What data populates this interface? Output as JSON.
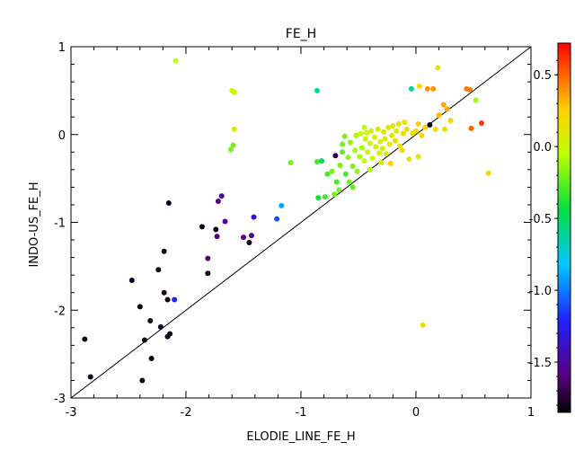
{
  "chart_data": {
    "type": "scatter",
    "title": "FE_H",
    "xlabel": "ELODIE_LINE_FE_H",
    "ylabel": "INDO-US_FE_H",
    "xlim": [
      -3,
      1
    ],
    "ylim": [
      -3,
      1
    ],
    "x_ticks": [
      "-3",
      "-2",
      "-1",
      "0",
      "1"
    ],
    "y_ticks": [
      "-3",
      "-2",
      "-1",
      "0",
      "1"
    ],
    "reference_line": "y = x",
    "grid": false,
    "legend": "none",
    "colorbar": {
      "location": "right",
      "range": [
        -1.85,
        0.72
      ],
      "ticks": [
        "0.5",
        "0.0",
        "-0.5",
        "-1.0",
        "-1.5"
      ],
      "colormap": "rainbow"
    },
    "points": [
      {
        "x": -2.88,
        "y": -2.33,
        "c": -1.8
      },
      {
        "x": -2.83,
        "y": -2.76,
        "c": -1.8
      },
      {
        "x": -2.47,
        "y": -1.66,
        "c": -1.8
      },
      {
        "x": -2.4,
        "y": -1.96,
        "c": -1.8
      },
      {
        "x": -2.36,
        "y": -2.34,
        "c": -1.8
      },
      {
        "x": -2.31,
        "y": -2.12,
        "c": -1.8
      },
      {
        "x": -2.3,
        "y": -2.55,
        "c": -1.8
      },
      {
        "x": -2.38,
        "y": -2.8,
        "c": -1.8
      },
      {
        "x": -2.24,
        "y": -1.54,
        "c": -1.8
      },
      {
        "x": -2.22,
        "y": -2.19,
        "c": -1.8
      },
      {
        "x": -2.19,
        "y": -1.33,
        "c": -1.8
      },
      {
        "x": -2.19,
        "y": -1.8,
        "c": -1.8
      },
      {
        "x": -2.16,
        "y": -1.88,
        "c": -1.8
      },
      {
        "x": -2.16,
        "y": -2.3,
        "c": -1.8
      },
      {
        "x": -2.14,
        "y": -2.27,
        "c": -1.8
      },
      {
        "x": -2.15,
        "y": -0.78,
        "c": -1.8
      },
      {
        "x": -2.1,
        "y": -1.88,
        "c": -1.2
      },
      {
        "x": -1.86,
        "y": -1.05,
        "c": -1.8
      },
      {
        "x": -1.81,
        "y": -1.58,
        "c": -1.8
      },
      {
        "x": -1.81,
        "y": -1.41,
        "c": -1.6
      },
      {
        "x": -1.74,
        "y": -1.08,
        "c": -1.8
      },
      {
        "x": -1.73,
        "y": -1.16,
        "c": -1.6
      },
      {
        "x": -1.72,
        "y": -0.76,
        "c": -1.6
      },
      {
        "x": -1.69,
        "y": -0.7,
        "c": -1.5
      },
      {
        "x": -1.66,
        "y": -0.99,
        "c": -1.6
      },
      {
        "x": -1.5,
        "y": -1.17,
        "c": -1.6
      },
      {
        "x": -1.45,
        "y": -1.23,
        "c": -1.8
      },
      {
        "x": -1.43,
        "y": -1.15,
        "c": -1.6
      },
      {
        "x": -1.41,
        "y": -0.94,
        "c": -1.4
      },
      {
        "x": -1.21,
        "y": -0.96,
        "c": -1.1
      },
      {
        "x": -1.17,
        "y": -0.81,
        "c": -0.9
      },
      {
        "x": -2.09,
        "y": 0.84,
        "c": -0.05
      },
      {
        "x": -1.6,
        "y": 0.5,
        "c": -0.05
      },
      {
        "x": -1.58,
        "y": 0.48,
        "c": 0.05
      },
      {
        "x": -1.58,
        "y": 0.06,
        "c": 0.05
      },
      {
        "x": -1.59,
        "y": -0.12,
        "c": -0.2
      },
      {
        "x": -1.61,
        "y": -0.17,
        "c": -0.2
      },
      {
        "x": -1.09,
        "y": -0.32,
        "c": -0.2
      },
      {
        "x": -0.86,
        "y": 0.5,
        "c": -0.6
      },
      {
        "x": -0.86,
        "y": -0.31,
        "c": -0.3
      },
      {
        "x": -0.82,
        "y": -0.3,
        "c": -0.5
      },
      {
        "x": -0.85,
        "y": -0.72,
        "c": -0.4
      },
      {
        "x": -0.79,
        "y": -0.71,
        "c": -0.3
      },
      {
        "x": -0.77,
        "y": -0.45,
        "c": -0.3
      },
      {
        "x": -0.73,
        "y": -0.42,
        "c": -0.2
      },
      {
        "x": -0.71,
        "y": -0.68,
        "c": -0.2
      },
      {
        "x": -0.7,
        "y": -0.24,
        "c": -1.7
      },
      {
        "x": -0.69,
        "y": -0.54,
        "c": -0.3
      },
      {
        "x": -0.67,
        "y": -0.63,
        "c": -0.2
      },
      {
        "x": -0.66,
        "y": -0.35,
        "c": -0.2
      },
      {
        "x": -0.64,
        "y": -0.11,
        "c": -0.2
      },
      {
        "x": -0.62,
        "y": -0.02,
        "c": -0.2
      },
      {
        "x": -0.61,
        "y": -0.45,
        "c": -0.3
      },
      {
        "x": -0.59,
        "y": -0.26,
        "c": -0.15
      },
      {
        "x": -0.58,
        "y": -0.54,
        "c": -0.2
      },
      {
        "x": -0.57,
        "y": -0.09,
        "c": -0.15
      },
      {
        "x": -0.55,
        "y": -0.36,
        "c": -0.2
      },
      {
        "x": -0.53,
        "y": -0.18,
        "c": -0.1
      },
      {
        "x": -0.52,
        "y": -0.01,
        "c": -0.1
      },
      {
        "x": -0.51,
        "y": -0.42,
        "c": -0.15
      },
      {
        "x": -0.49,
        "y": -0.25,
        "c": -0.1
      },
      {
        "x": -0.48,
        "y": 0.01,
        "c": -0.05
      },
      {
        "x": -0.47,
        "y": -0.15,
        "c": -0.1
      },
      {
        "x": -0.45,
        "y": -0.3,
        "c": -0.05
      },
      {
        "x": -0.44,
        "y": -0.05,
        "c": 0.0
      },
      {
        "x": -0.43,
        "y": 0.02,
        "c": 0.0
      },
      {
        "x": -0.42,
        "y": -0.2,
        "c": -0.05
      },
      {
        "x": -0.4,
        "y": -0.1,
        "c": 0.0
      },
      {
        "x": -0.39,
        "y": 0.04,
        "c": 0.05
      },
      {
        "x": -0.38,
        "y": -0.27,
        "c": -0.05
      },
      {
        "x": -0.36,
        "y": -0.03,
        "c": 0.05
      },
      {
        "x": -0.35,
        "y": -0.14,
        "c": 0.0
      },
      {
        "x": -0.33,
        "y": 0.06,
        "c": 0.05
      },
      {
        "x": -0.32,
        "y": -0.21,
        "c": 0.0
      },
      {
        "x": -0.31,
        "y": -0.08,
        "c": 0.05
      },
      {
        "x": -0.29,
        "y": -0.16,
        "c": 0.05
      },
      {
        "x": -0.28,
        "y": 0.03,
        "c": 0.1
      },
      {
        "x": -0.27,
        "y": -0.05,
        "c": 0.1
      },
      {
        "x": -0.26,
        "y": -0.22,
        "c": 0.05
      },
      {
        "x": -0.24,
        "y": 0.08,
        "c": 0.1
      },
      {
        "x": -0.23,
        "y": -0.11,
        "c": 0.1
      },
      {
        "x": -0.21,
        "y": -0.01,
        "c": 0.1
      },
      {
        "x": -0.2,
        "y": 0.1,
        "c": 0.1
      },
      {
        "x": -0.18,
        "y": -0.07,
        "c": 0.15
      },
      {
        "x": -0.17,
        "y": 0.04,
        "c": 0.1
      },
      {
        "x": -0.15,
        "y": 0.12,
        "c": 0.15
      },
      {
        "x": -0.14,
        "y": -0.13,
        "c": 0.15
      },
      {
        "x": -0.22,
        "y": -0.33,
        "c": 0.25
      },
      {
        "x": -0.11,
        "y": 0.01,
        "c": 0.15
      },
      {
        "x": -0.08,
        "y": 0.06,
        "c": 0.2
      },
      {
        "x": -0.06,
        "y": -0.28,
        "c": 0.1
      },
      {
        "x": -0.04,
        "y": 0.52,
        "c": -0.6
      },
      {
        "x": -0.03,
        "y": 0.01,
        "c": 0.15
      },
      {
        "x": 0.0,
        "y": 0.04,
        "c": 0.2
      },
      {
        "x": 0.02,
        "y": -0.25,
        "c": 0.1
      },
      {
        "x": 0.03,
        "y": 0.55,
        "c": 0.15
      },
      {
        "x": 0.05,
        "y": -0.01,
        "c": 0.2
      },
      {
        "x": 0.06,
        "y": -2.17,
        "c": 0.2
      },
      {
        "x": 0.08,
        "y": 0.08,
        "c": 0.25
      },
      {
        "x": 0.1,
        "y": 0.52,
        "c": 0.4
      },
      {
        "x": 0.12,
        "y": 0.11,
        "c": -1.8
      },
      {
        "x": 0.15,
        "y": 0.52,
        "c": 0.4
      },
      {
        "x": 0.17,
        "y": 0.06,
        "c": 0.2
      },
      {
        "x": 0.19,
        "y": 0.76,
        "c": 0.15
      },
      {
        "x": 0.2,
        "y": 0.22,
        "c": 0.3
      },
      {
        "x": 0.24,
        "y": 0.34,
        "c": 0.35
      },
      {
        "x": 0.25,
        "y": 0.06,
        "c": 0.15
      },
      {
        "x": 0.27,
        "y": 0.29,
        "c": 0.35
      },
      {
        "x": 0.3,
        "y": 0.16,
        "c": 0.2
      },
      {
        "x": 0.44,
        "y": 0.52,
        "c": 0.45
      },
      {
        "x": 0.47,
        "y": 0.51,
        "c": 0.45
      },
      {
        "x": 0.48,
        "y": 0.07,
        "c": 0.5
      },
      {
        "x": 0.52,
        "y": 0.39,
        "c": -0.1
      },
      {
        "x": 0.57,
        "y": 0.13,
        "c": 0.6
      },
      {
        "x": 0.63,
        "y": -0.44,
        "c": 0.2
      },
      {
        "x": -0.1,
        "y": 0.14,
        "c": 0.15
      },
      {
        "x": -0.45,
        "y": 0.08,
        "c": -0.05
      },
      {
        "x": -0.64,
        "y": -0.2,
        "c": -0.25
      },
      {
        "x": -0.55,
        "y": -0.6,
        "c": -0.25
      },
      {
        "x": -0.4,
        "y": -0.4,
        "c": -0.1
      },
      {
        "x": -0.3,
        "y": -0.32,
        "c": 0.0
      },
      {
        "x": -0.12,
        "y": -0.18,
        "c": 0.2
      },
      {
        "x": 0.02,
        "y": 0.12,
        "c": 0.25
      }
    ]
  }
}
